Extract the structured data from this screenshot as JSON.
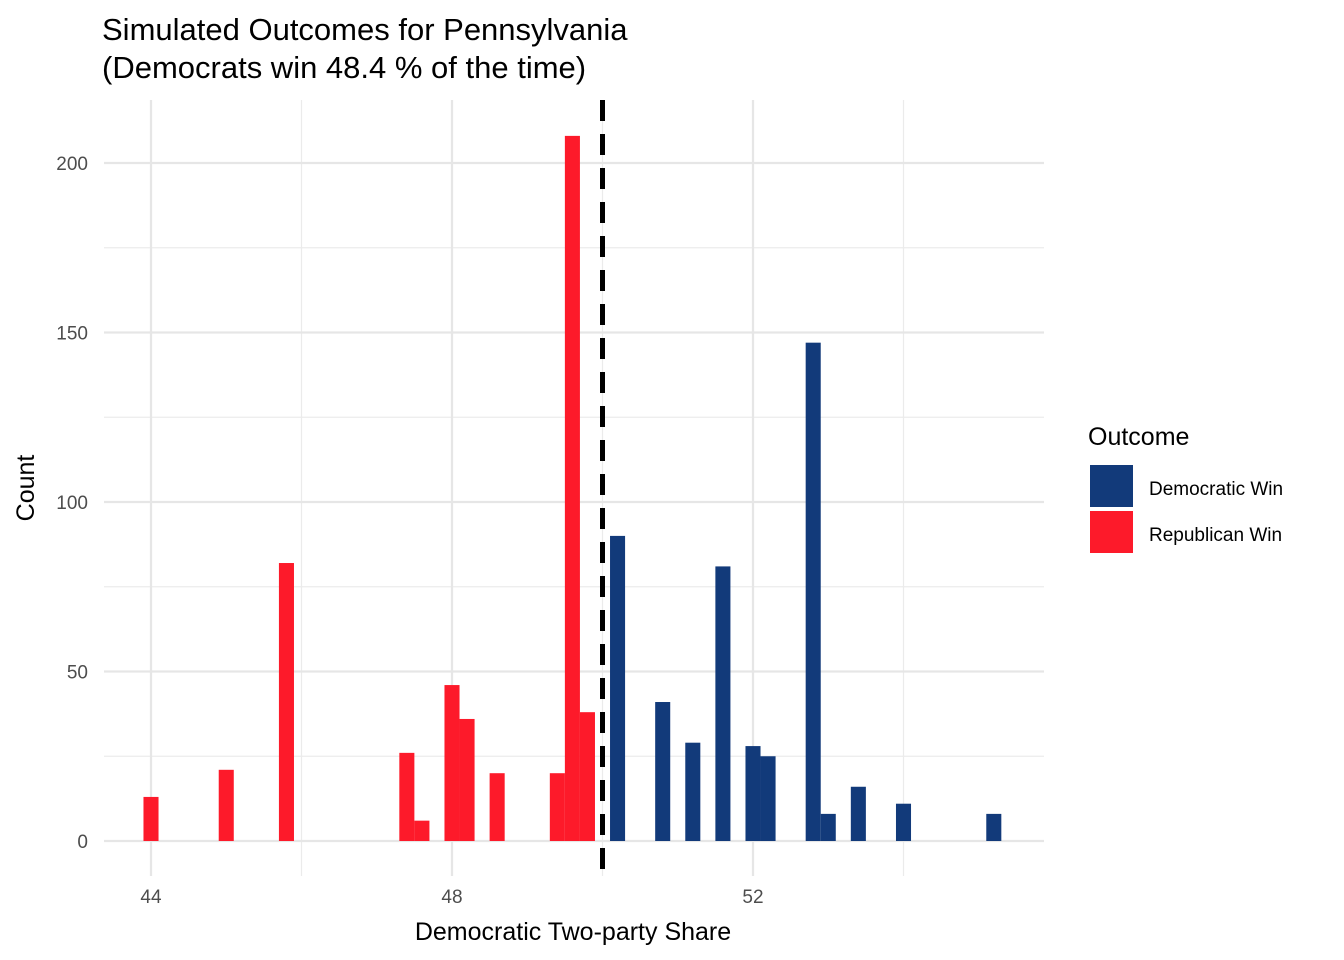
{
  "chart_data": {
    "type": "bar",
    "title_lines": [
      "Simulated Outcomes for Pennsylvania",
      "(Democrats win 48.4 % of the time)"
    ],
    "xlabel": "Democratic Two-party Share",
    "ylabel": "Count",
    "xlim": [
      43.5,
      55.8
    ],
    "ylim": [
      -10,
      220
    ],
    "x_ticks": [
      {
        "value": 44,
        "label": "44"
      },
      {
        "value": 48,
        "label": "48"
      },
      {
        "value": 52,
        "label": "52"
      }
    ],
    "x_minor_gridlines": [
      46,
      50,
      54
    ],
    "y_ticks": [
      {
        "value": 0,
        "label": "0"
      },
      {
        "value": 50,
        "label": "50"
      },
      {
        "value": 100,
        "label": "100"
      },
      {
        "value": 150,
        "label": "150"
      },
      {
        "value": 200,
        "label": "200"
      }
    ],
    "y_minor_gridlines": [
      25,
      75,
      125,
      175
    ],
    "bin_width": 0.2,
    "threshold_line": {
      "x": 50,
      "style": "dashed",
      "color": "#000000"
    },
    "grid": true,
    "legend": {
      "title": "Outcome",
      "placement": "right",
      "entries": [
        {
          "label": "Democratic Win",
          "color": "#123A7A"
        },
        {
          "label": "Republican Win",
          "color": "#FD1A2A"
        }
      ]
    },
    "series": [
      {
        "name": "Republican Win",
        "color": "#FD1A2A",
        "bins": [
          {
            "x": 44.0,
            "count": 13
          },
          {
            "x": 45.0,
            "count": 21
          },
          {
            "x": 45.8,
            "count": 82
          },
          {
            "x": 47.4,
            "count": 26
          },
          {
            "x": 47.6,
            "count": 6
          },
          {
            "x": 48.0,
            "count": 46
          },
          {
            "x": 48.2,
            "count": 36
          },
          {
            "x": 48.6,
            "count": 20
          },
          {
            "x": 49.4,
            "count": 20
          },
          {
            "x": 49.6,
            "count": 208
          },
          {
            "x": 49.8,
            "count": 38
          }
        ]
      },
      {
        "name": "Democratic Win",
        "color": "#123A7A",
        "bins": [
          {
            "x": 50.2,
            "count": 90
          },
          {
            "x": 50.8,
            "count": 41
          },
          {
            "x": 51.2,
            "count": 29
          },
          {
            "x": 51.6,
            "count": 81
          },
          {
            "x": 52.0,
            "count": 28
          },
          {
            "x": 52.2,
            "count": 25
          },
          {
            "x": 52.8,
            "count": 147
          },
          {
            "x": 53.0,
            "count": 8
          },
          {
            "x": 53.4,
            "count": 16
          },
          {
            "x": 54.0,
            "count": 11
          },
          {
            "x": 55.2,
            "count": 8
          }
        ]
      }
    ]
  }
}
